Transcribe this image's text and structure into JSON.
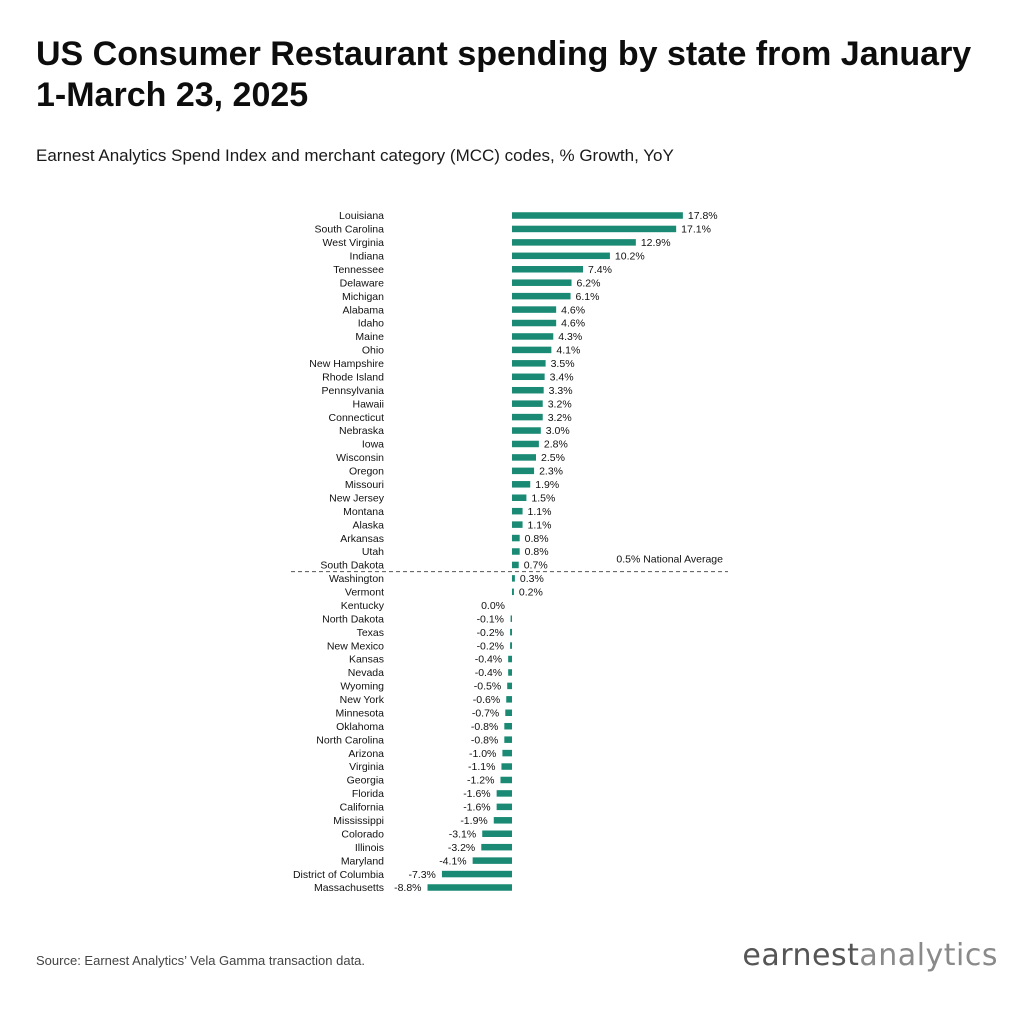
{
  "title": "US Consumer Restaurant spending by state from January 1-March 23, 2025",
  "subtitle": "Earnest Analytics Spend Index and merchant category (MCC) codes, % Growth, YoY",
  "source": "Source: Earnest Analytics’ Vela Gamma transaction data.",
  "logo": {
    "part1": "earnest",
    "part2": "analytics"
  },
  "colors": {
    "bar": "#1a8a74",
    "reference_line": "#555555",
    "text": "#111111"
  },
  "chart_data": {
    "type": "bar",
    "orientation": "horizontal",
    "categories": [
      "Louisiana",
      "South Carolina",
      "West Virginia",
      "Indiana",
      "Tennessee",
      "Delaware",
      "Michigan",
      "Alabama",
      "Idaho",
      "Maine",
      "Ohio",
      "New Hampshire",
      "Rhode Island",
      "Pennsylvania",
      "Hawaii",
      "Connecticut",
      "Nebraska",
      "Iowa",
      "Wisconsin",
      "Oregon",
      "Missouri",
      "New Jersey",
      "Montana",
      "Alaska",
      "Arkansas",
      "Utah",
      "South Dakota",
      "Washington",
      "Vermont",
      "Kentucky",
      "North Dakota",
      "Texas",
      "New Mexico",
      "Kansas",
      "Nevada",
      "Wyoming",
      "New York",
      "Minnesota",
      "Oklahoma",
      "North Carolina",
      "Arizona",
      "Virginia",
      "Georgia",
      "Florida",
      "California",
      "Mississippi",
      "Colorado",
      "Illinois",
      "Maryland",
      "District of Columbia",
      "Massachusetts"
    ],
    "values": [
      17.8,
      17.1,
      12.9,
      10.2,
      7.4,
      6.2,
      6.1,
      4.6,
      4.6,
      4.3,
      4.1,
      3.5,
      3.4,
      3.3,
      3.2,
      3.2,
      3.0,
      2.8,
      2.5,
      2.3,
      1.9,
      1.5,
      1.1,
      1.1,
      0.8,
      0.8,
      0.7,
      0.3,
      0.2,
      0.0,
      -0.1,
      -0.2,
      -0.2,
      -0.4,
      -0.4,
      -0.5,
      -0.6,
      -0.7,
      -0.8,
      -0.8,
      -1.0,
      -1.1,
      -1.2,
      -1.6,
      -1.6,
      -1.9,
      -3.1,
      -3.2,
      -4.1,
      -7.3,
      -8.8
    ],
    "value_labels": [
      "17.8%",
      "17.1%",
      "12.9%",
      "10.2%",
      "7.4%",
      "6.2%",
      "6.1%",
      "4.6%",
      "4.6%",
      "4.3%",
      "4.1%",
      "3.5%",
      "3.4%",
      "3.3%",
      "3.2%",
      "3.2%",
      "3.0%",
      "2.8%",
      "2.5%",
      "2.3%",
      "1.9%",
      "1.5%",
      "1.1%",
      "1.1%",
      "0.8%",
      "0.8%",
      "0.7%",
      "0.3%",
      "0.2%",
      "0.0%",
      "-0.1%",
      "-0.2%",
      "-0.2%",
      "-0.4%",
      "-0.4%",
      "-0.5%",
      "-0.6%",
      "-0.7%",
      "-0.8%",
      "-0.8%",
      "-1.0%",
      "-1.1%",
      "-1.2%",
      "-1.6%",
      "-1.6%",
      "-1.9%",
      "-3.1%",
      "-3.2%",
      "-4.1%",
      "-7.3%",
      "-8.8%"
    ],
    "reference_line": {
      "value": 0.5,
      "label": "0.5% National Average"
    },
    "xlim": [
      -8.8,
      17.8
    ],
    "grid": false,
    "legend": false
  }
}
